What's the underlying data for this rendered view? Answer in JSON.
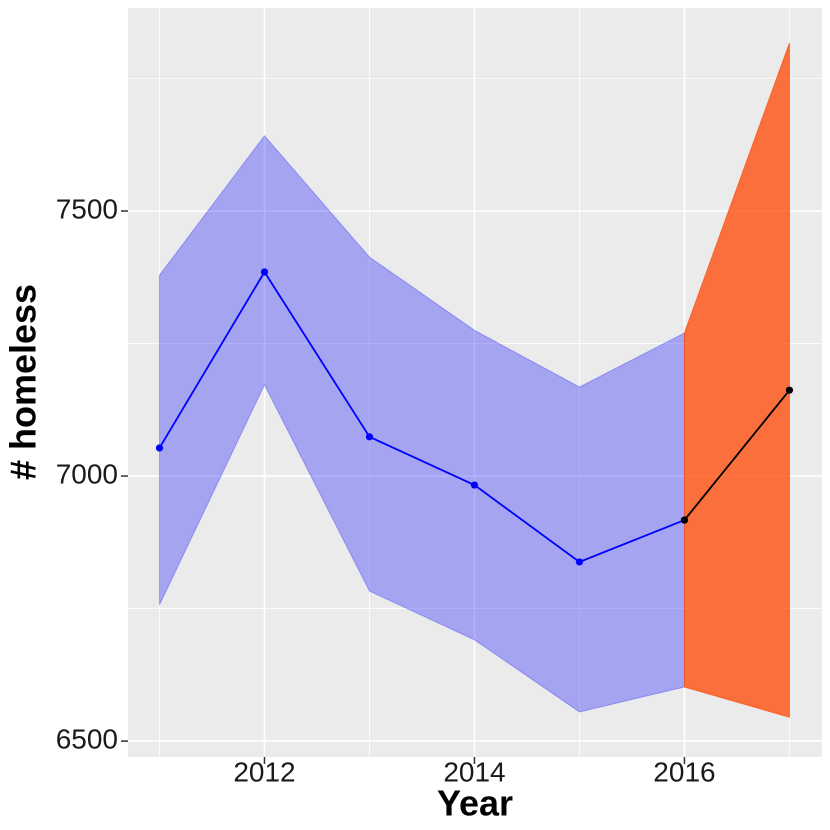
{
  "chart_data": {
    "type": "line",
    "x_label": "Year",
    "y_label": "# homeless",
    "x": [
      2011,
      2012,
      2013,
      2014,
      2015,
      2016,
      2017
    ],
    "series": [
      {
        "color": "#0000ff",
        "values": [
          7053,
          7385,
          7074,
          6983,
          6838,
          6917,
          null
        ]
      },
      {
        "color": "#000000",
        "values": [
          null,
          null,
          null,
          null,
          null,
          6917,
          7162
        ]
      }
    ],
    "bands": [
      {
        "color": "#0000ff",
        "alpha": 0.3,
        "upper": [
          7379,
          7642,
          7413,
          7275,
          7168,
          7270,
          null
        ],
        "lower": [
          6757,
          7172,
          6783,
          6691,
          6555,
          6602,
          null
        ]
      },
      {
        "color": "#ff4500",
        "alpha": 0.75,
        "upper": [
          null,
          null,
          null,
          null,
          null,
          7270,
          7817
        ],
        "lower": [
          null,
          null,
          null,
          null,
          null,
          6602,
          6545
        ]
      }
    ],
    "xlim": [
      2010.7,
      2017.31
    ],
    "ylim": [
      6470,
      7883
    ],
    "xticks": [
      2012,
      2014,
      2016
    ],
    "yticks": [
      6500,
      7000,
      7500
    ],
    "grid": true,
    "background": "#ebebeb"
  }
}
